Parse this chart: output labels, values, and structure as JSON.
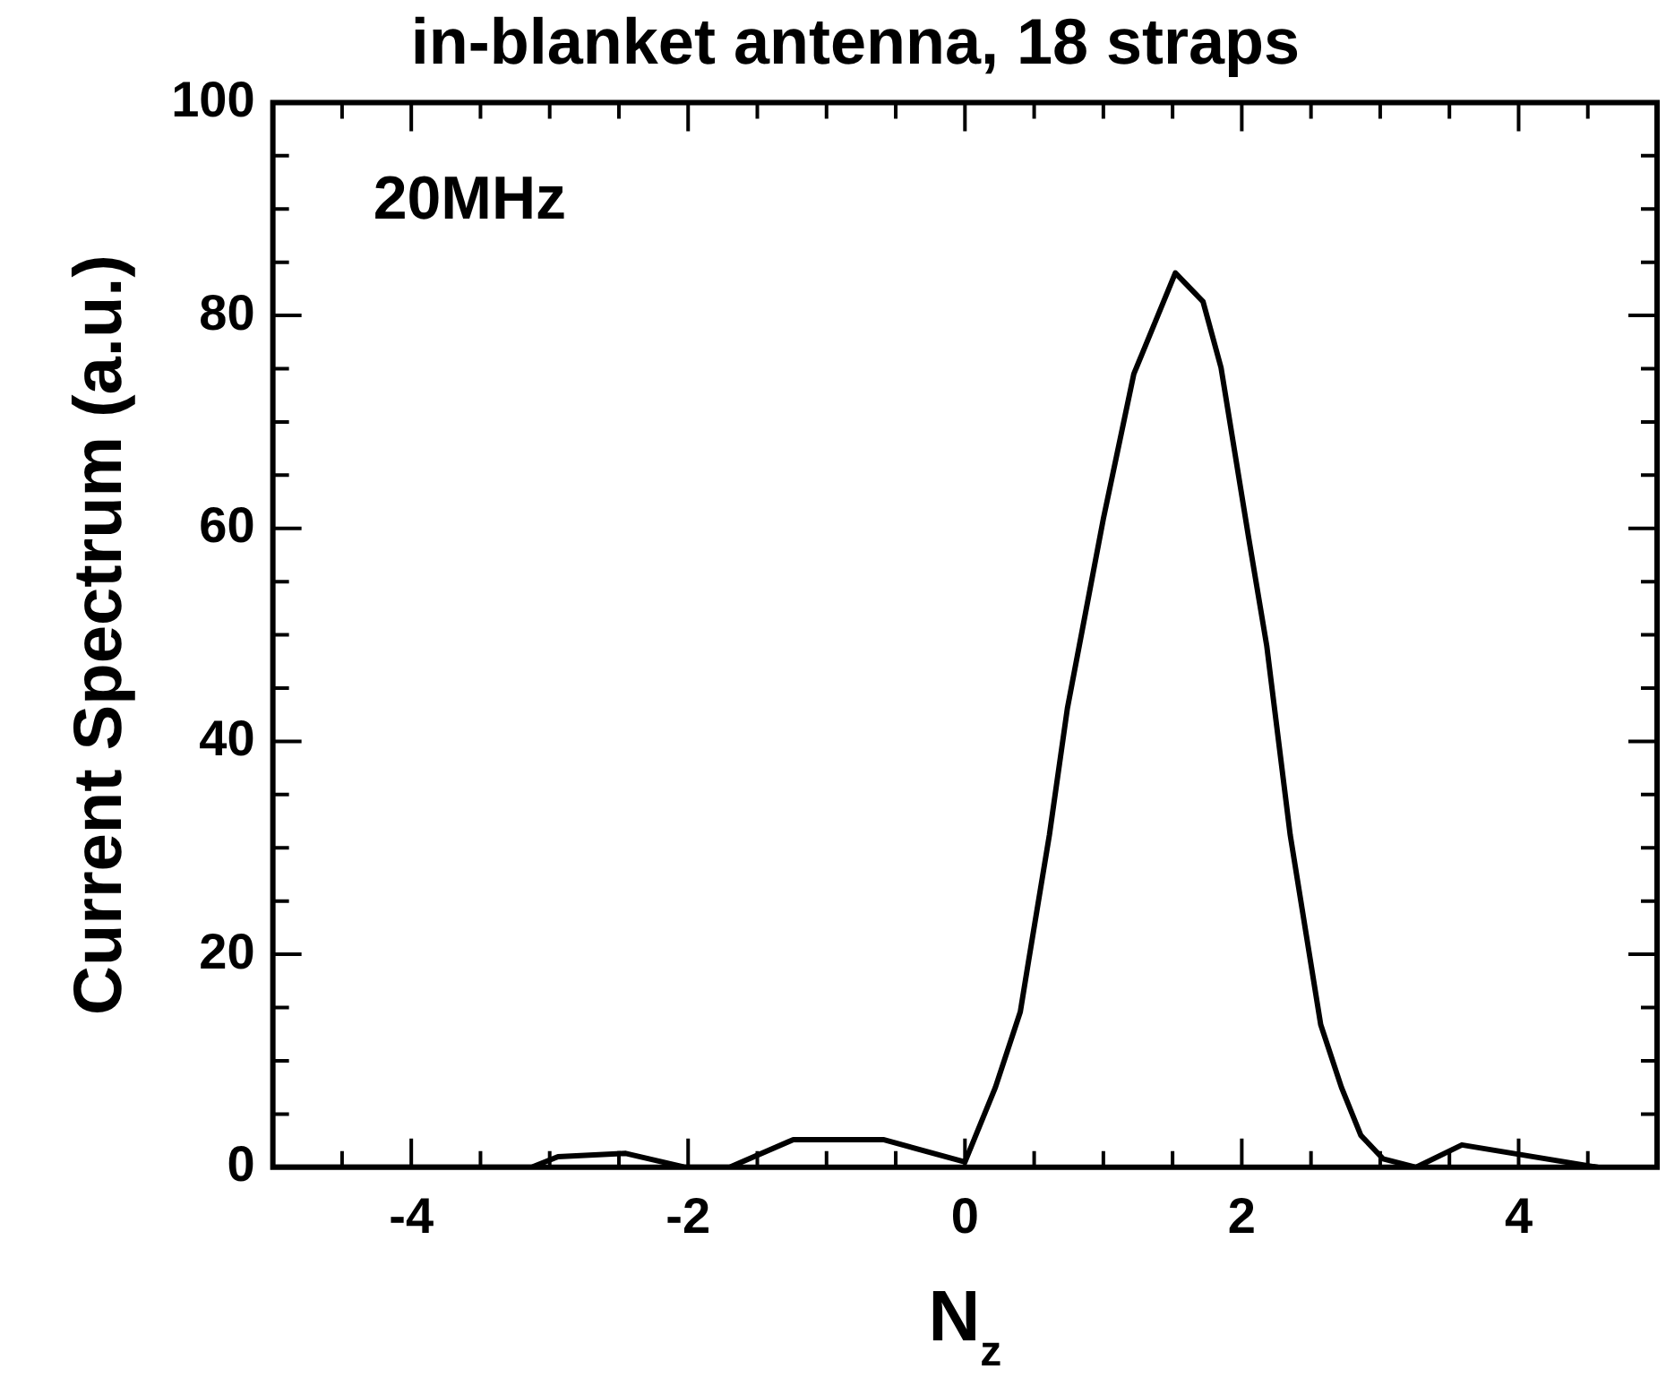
{
  "chart_data": {
    "type": "line",
    "title": "in-blanket antenna, 18 straps",
    "xlabel": "N$_{z}$",
    "ylabel": "Current Spectrum (a.u.)",
    "annotations": [
      "20MHz"
    ],
    "x": [
      -5,
      -3.13,
      -2.94,
      -2.45,
      -2.02,
      -1.7,
      -1.24,
      -0.59,
      0,
      0.22,
      0.4,
      0.46,
      0.61,
      0.74,
      0.87,
      1.0,
      1.22,
      1.52,
      1.72,
      1.85,
      2.05,
      2.18,
      2.35,
      2.57,
      2.72,
      2.86,
      3.02,
      3.26,
      3.59,
      4.57
    ],
    "series": [
      {
        "color": "#000000",
        "values": [
          0,
          0,
          1.0,
          1.3,
          0,
          0,
          2.6,
          2.6,
          0.5,
          7.5,
          14.6,
          19.4,
          31.2,
          43.1,
          52,
          60.9,
          74.5,
          84,
          81.3,
          75.1,
          59.1,
          49,
          31.2,
          13.4,
          7.5,
          3,
          0.8,
          0,
          2.1,
          0
        ]
      }
    ],
    "xlim": [
      -5,
      5
    ],
    "ylim": [
      0,
      100
    ],
    "xticks": [
      {
        "value": -4.5,
        "label": null
      },
      -4,
      {
        "value": -3.5,
        "label": null
      },
      {
        "value": -3,
        "label": null
      },
      {
        "value": -2.5,
        "label": null
      },
      -2,
      {
        "value": -1.5,
        "label": null
      },
      {
        "value": -1,
        "label": null
      },
      {
        "value": -0.5,
        "label": null
      },
      0,
      {
        "value": 0.5,
        "label": null
      },
      {
        "value": 1,
        "label": null
      },
      {
        "value": 1.5,
        "label": null
      },
      2,
      {
        "value": 2.5,
        "label": null
      },
      {
        "value": 3,
        "label": null
      },
      {
        "value": 3.5,
        "label": null
      },
      4,
      {
        "value": 4.5,
        "label": null
      }
    ],
    "yticks": [
      0,
      {
        "value": 5,
        "label": null
      },
      {
        "value": 10,
        "label": null
      },
      {
        "value": 15,
        "label": null
      },
      20,
      {
        "value": 25,
        "label": null
      },
      {
        "value": 30,
        "label": null
      },
      {
        "value": 35,
        "label": null
      },
      40,
      {
        "value": 45,
        "label": null
      },
      {
        "value": 50,
        "label": null
      },
      {
        "value": 55,
        "label": null
      },
      60,
      {
        "value": 65,
        "label": null
      },
      {
        "value": 70,
        "label": null
      },
      {
        "value": 75,
        "label": null
      },
      80,
      {
        "value": 85,
        "label": null
      },
      {
        "value": 90,
        "label": null
      },
      {
        "value": 95,
        "label": null
      },
      100
    ],
    "grid": false,
    "legend": false,
    "marker": "none",
    "line_style": "solid"
  }
}
